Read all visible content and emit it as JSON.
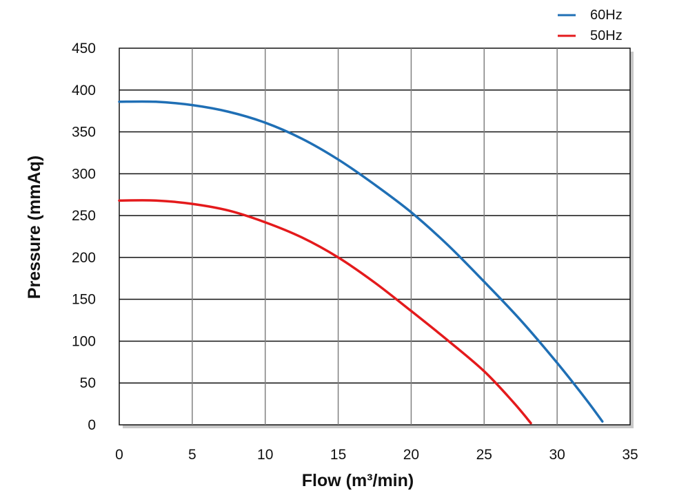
{
  "chart_data": {
    "type": "line",
    "title": "",
    "xlabel": "Flow (m³/min)",
    "ylabel": "Pressure (mmAq)",
    "xlim": [
      0,
      35
    ],
    "ylim": [
      0,
      450
    ],
    "xticks": [
      0,
      5,
      10,
      15,
      20,
      25,
      30,
      35
    ],
    "yticks": [
      0,
      50,
      100,
      150,
      200,
      250,
      300,
      350,
      400,
      450
    ],
    "grid": true,
    "legend_position": "top-right",
    "series": [
      {
        "name": "60Hz",
        "color": "#1f6fb5",
        "x": [
          0,
          2.5,
          5,
          7.5,
          10,
          12.5,
          15,
          17.5,
          20,
          22.5,
          25,
          27.5,
          30,
          32,
          33.1
        ],
        "y": [
          386,
          386,
          382,
          374,
          361,
          342,
          317,
          287,
          254,
          215,
          171,
          125,
          74,
          30,
          4
        ]
      },
      {
        "name": "50Hz",
        "color": "#e41a1c",
        "x": [
          0,
          2.5,
          5,
          7.5,
          10,
          12.5,
          15,
          17.5,
          20,
          22.5,
          25,
          27,
          28.2
        ],
        "y": [
          268,
          268,
          264,
          256,
          242,
          224,
          200,
          170,
          136,
          101,
          64,
          27,
          2
        ]
      }
    ]
  }
}
